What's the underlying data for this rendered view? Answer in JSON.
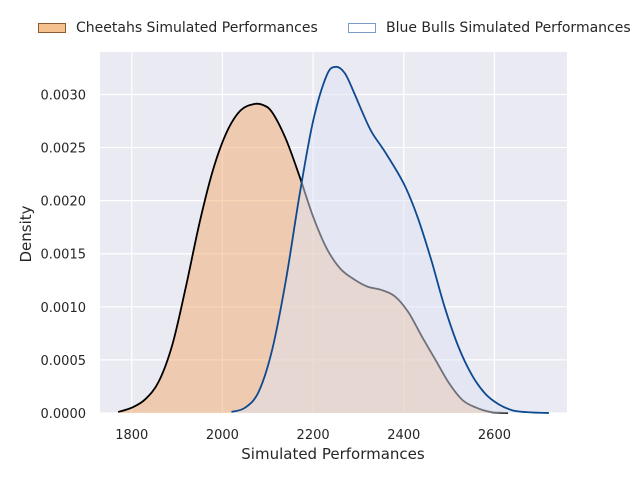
{
  "chart_data": {
    "type": "area",
    "xlabel": "Simulated Performances",
    "ylabel": "Density",
    "xlim": [
      1730,
      2760
    ],
    "ylim": [
      0,
      0.0034
    ],
    "x_ticks": [
      "1800",
      "2000",
      "2200",
      "2400",
      "2600"
    ],
    "y_ticks": [
      "0.0000",
      "0.0005",
      "0.0010",
      "0.0015",
      "0.0020",
      "0.0025",
      "0.0030"
    ],
    "grid": true,
    "legend_position": "top",
    "series": [
      {
        "name": "Cheetahs Simulated Performances",
        "color": "#f4a460",
        "line_color": "#000000",
        "x": [
          1770,
          1800,
          1830,
          1860,
          1890,
          1920,
          1950,
          1980,
          2010,
          2040,
          2070,
          2090,
          2110,
          2140,
          2170,
          2200,
          2230,
          2260,
          2290,
          2320,
          2350,
          2380,
          2410,
          2440,
          2470,
          2500,
          2530,
          2560,
          2590,
          2610,
          2630
        ],
        "y": [
          1e-05,
          5e-05,
          0.00013,
          0.0003,
          0.00065,
          0.0012,
          0.0018,
          0.0023,
          0.00265,
          0.00285,
          0.00291,
          0.0029,
          0.00283,
          0.00258,
          0.00223,
          0.00185,
          0.00155,
          0.00136,
          0.00126,
          0.00119,
          0.00116,
          0.0011,
          0.00095,
          0.00072,
          0.0005,
          0.00028,
          0.00012,
          5e-05,
          1e-05,
          3e-06,
          5e-07
        ]
      },
      {
        "name": "Blue Bulls Simulated Performances",
        "color": "#dde3f3",
        "line_color": "#0d4a8f",
        "x": [
          2020,
          2050,
          2080,
          2110,
          2140,
          2170,
          2200,
          2230,
          2250,
          2270,
          2290,
          2310,
          2330,
          2360,
          2400,
          2430,
          2460,
          2490,
          2520,
          2550,
          2580,
          2610,
          2640,
          2670,
          2700,
          2720
        ],
        "y": [
          1e-05,
          5e-05,
          0.0002,
          0.0006,
          0.00125,
          0.00205,
          0.00275,
          0.00318,
          0.00326,
          0.0032,
          0.00302,
          0.00282,
          0.00264,
          0.00245,
          0.00216,
          0.00185,
          0.00145,
          0.001,
          0.00063,
          0.00036,
          0.00018,
          8e-05,
          2.5e-05,
          8e-06,
          2e-06,
          5e-07
        ]
      }
    ]
  }
}
